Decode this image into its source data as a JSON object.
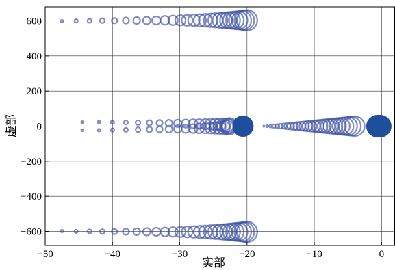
{
  "chart_data": {
    "type": "scatter",
    "title": "",
    "xlabel": "实部",
    "ylabel": "虚部",
    "xlim": [
      -50,
      2
    ],
    "ylim": [
      -680,
      680
    ],
    "xticks": [
      -50,
      -40,
      -30,
      -20,
      -10,
      0
    ],
    "xtick_labels": [
      "−50",
      "−40",
      "−30",
      "−20",
      "−10",
      "0"
    ],
    "yticks": [
      -600,
      -400,
      -200,
      0,
      200,
      400,
      600
    ],
    "ytick_labels": [
      "−600",
      "−400",
      "−200",
      "0",
      "200",
      "400",
      "600"
    ],
    "grid": true,
    "marker_color": "#3a4fa3",
    "filled_marker_color": "#1f4e9c",
    "series": [
      {
        "x": [
          -47.5,
          -45.4,
          -43.4,
          -41.5,
          -39.7,
          -38.0,
          -36.4,
          -34.9,
          -33.5,
          -32.2,
          -31.0,
          -29.9,
          -28.9,
          -27.9,
          -27.0,
          -26.2,
          -25.4,
          -24.7,
          -24.0,
          -23.4,
          -22.8,
          -22.3,
          -21.8,
          -21.3,
          -20.8,
          -20.4,
          -20.0
        ],
        "y": [
          598,
          600,
          600,
          601,
          601,
          602,
          602,
          602,
          602,
          603,
          603,
          603,
          603,
          603,
          603,
          603,
          603,
          603,
          603,
          603,
          603,
          603,
          603,
          603,
          603,
          603,
          603
        ],
        "size": [
          2,
          2.5,
          3,
          3.5,
          4,
          4.5,
          5,
          5.5,
          6,
          6.5,
          7,
          7.5,
          8,
          8.5,
          9,
          9.5,
          10,
          10.5,
          11,
          11.5,
          12,
          12.5,
          13,
          13.5,
          14,
          14.5,
          15
        ]
      },
      {
        "x": [
          -47.5,
          -45.4,
          -43.4,
          -41.5,
          -39.7,
          -38.0,
          -36.4,
          -34.9,
          -33.5,
          -32.2,
          -31.0,
          -29.9,
          -28.9,
          -27.9,
          -27.0,
          -26.2,
          -25.4,
          -24.7,
          -24.0,
          -23.4,
          -22.8,
          -22.3,
          -21.8,
          -21.3,
          -20.8,
          -20.4,
          -20.0
        ],
        "y": [
          -598,
          -600,
          -600,
          -601,
          -601,
          -602,
          -602,
          -602,
          -602,
          -603,
          -603,
          -603,
          -603,
          -603,
          -603,
          -603,
          -603,
          -603,
          -603,
          -603,
          -603,
          -603,
          -603,
          -603,
          -603,
          -603,
          -603
        ],
        "size": [
          2,
          2.5,
          3,
          3.5,
          4,
          4.5,
          5,
          5.5,
          6,
          6.5,
          7,
          7.5,
          8,
          8.5,
          9,
          9.5,
          10,
          10.5,
          11,
          11.5,
          12,
          12.5,
          13,
          13.5,
          14,
          14.5,
          15
        ]
      },
      {
        "x": [
          -44.5,
          -42.0,
          -40.0,
          -38.0,
          -36.2,
          -34.5,
          -33.0,
          -31.6,
          -30.3,
          -29.1,
          -28.0,
          -27.1,
          -26.2,
          -25.4,
          -24.7,
          -24.1,
          -23.5,
          -23.0,
          -22.6
        ],
        "y": [
          23,
          23,
          22,
          21,
          20,
          19,
          18,
          17,
          16,
          15,
          14,
          13,
          12,
          11,
          10,
          9,
          8,
          6,
          4
        ],
        "size": [
          1.5,
          2,
          2.5,
          3,
          3.5,
          4,
          4.5,
          5,
          5.5,
          6,
          6.5,
          7,
          7.5,
          8,
          8.5,
          9,
          9.5,
          10,
          11
        ]
      },
      {
        "x": [
          -44.5,
          -42.0,
          -40.0,
          -38.0,
          -36.2,
          -34.5,
          -33.0,
          -31.6,
          -30.3,
          -29.1,
          -28.0,
          -27.1,
          -26.2,
          -25.4,
          -24.7,
          -24.1,
          -23.5,
          -23.0,
          -22.6
        ],
        "y": [
          -23,
          -23,
          -22,
          -21,
          -20,
          -19,
          -18,
          -17,
          -16,
          -15,
          -14,
          -13,
          -12,
          -11,
          -10,
          -9,
          -8,
          -6,
          -4
        ],
        "size": [
          1.5,
          2,
          2.5,
          3,
          3.5,
          4,
          4.5,
          5,
          5.5,
          6,
          6.5,
          7,
          7.5,
          8,
          8.5,
          9,
          9.5,
          10,
          11
        ]
      },
      {
        "x": [
          -17.5,
          -17.0,
          -16.5,
          -16.0,
          -15.5,
          -15.0,
          -14.5,
          -14.0,
          -13.5,
          -13.0,
          -12.5,
          -12.0,
          -11.5,
          -11.0,
          -10.5,
          -10.0,
          -9.5,
          -9.0,
          -8.5,
          -8.0,
          -7.5,
          -7.0,
          -6.5,
          -6.0,
          -5.5,
          -5.0,
          -4.5,
          -4.0
        ],
        "y": [
          0,
          0,
          0,
          0,
          0,
          0,
          0,
          0,
          0,
          0,
          0,
          0,
          0,
          0,
          0,
          0,
          0,
          0,
          0,
          0,
          0,
          0,
          0,
          0,
          0,
          0,
          0,
          0
        ],
        "size": [
          1,
          1.5,
          2,
          2.5,
          3,
          3.5,
          4,
          4.5,
          5,
          5.5,
          6,
          6.5,
          7,
          7.5,
          8,
          8.5,
          9,
          9.5,
          10,
          10.5,
          11,
          11.5,
          12,
          12.5,
          13,
          13.5,
          14,
          14.5
        ]
      },
      {
        "x": [
          -20.6,
          -0.6,
          -0.2
        ],
        "y": [
          0,
          0,
          0
        ],
        "size": [
          15,
          16,
          16
        ],
        "filled": true
      }
    ]
  }
}
